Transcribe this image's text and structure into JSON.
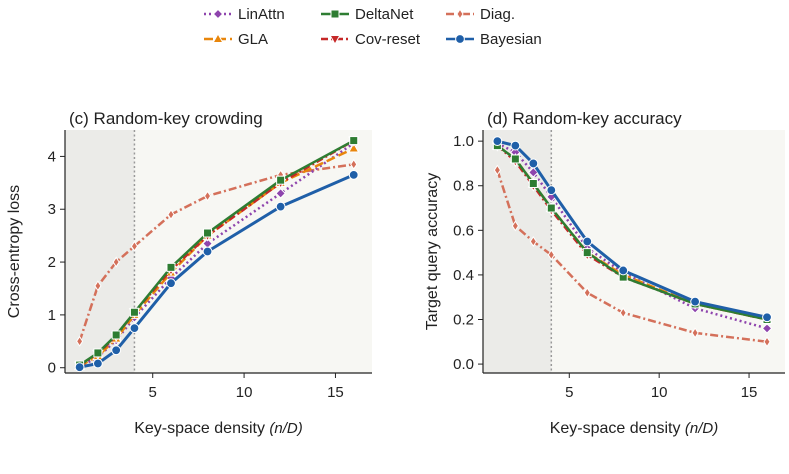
{
  "legend": [
    {
      "name": "LinAttn",
      "color": "#8e44ad",
      "marker": "diamond",
      "dash": "2,3"
    },
    {
      "name": "GLA",
      "color": "#e8860c",
      "marker": "triangle-up",
      "dash": "9,4"
    },
    {
      "name": "DeltaNet",
      "color": "#2e7d32",
      "marker": "square",
      "dash": "none"
    },
    {
      "name": "Cov-reset",
      "color": "#c62828",
      "marker": "triangle-down",
      "dash": "7,3,2,3"
    },
    {
      "name": "Diag.",
      "color": "#d4705a",
      "marker": "thin-diamond",
      "dash": "8,3,2,3"
    },
    {
      "name": "Bayesian",
      "color": "#1f5fa8",
      "marker": "circle",
      "dash": "none"
    }
  ],
  "chart_data": [
    {
      "type": "line",
      "title": "(c) Random-key crowding",
      "xlabel": "Key-space density",
      "xlabel_math": "(n/D)",
      "ylabel": "Cross-entropy loss",
      "xlim": [
        0.2,
        17
      ],
      "ylim": [
        -0.1,
        4.5
      ],
      "xticks": [
        5,
        10,
        15
      ],
      "yticks": [
        0,
        1,
        2,
        3,
        4
      ],
      "shaded_region": [
        0.2,
        4
      ],
      "reference_line_x": 4,
      "x": [
        1,
        2,
        3,
        4,
        6,
        8,
        12,
        16
      ],
      "series": [
        {
          "name": "LinAttn",
          "values": [
            0.02,
            0.2,
            0.52,
            0.95,
            1.7,
            2.35,
            3.3,
            4.25
          ]
        },
        {
          "name": "GLA",
          "values": [
            0.03,
            0.22,
            0.55,
            1.0,
            1.8,
            2.5,
            3.5,
            4.15
          ]
        },
        {
          "name": "DeltaNet",
          "values": [
            0.05,
            0.28,
            0.62,
            1.05,
            1.9,
            2.55,
            3.55,
            4.3
          ]
        },
        {
          "name": "Cov-reset",
          "values": [
            0.04,
            0.26,
            0.6,
            1.05,
            1.85,
            2.5,
            3.5,
            4.3
          ]
        },
        {
          "name": "Diag.",
          "values": [
            0.5,
            1.55,
            2.0,
            2.3,
            2.9,
            3.25,
            3.65,
            3.85
          ]
        },
        {
          "name": "Bayesian",
          "values": [
            0.01,
            0.08,
            0.33,
            0.75,
            1.6,
            2.2,
            3.05,
            3.65
          ]
        }
      ]
    },
    {
      "type": "line",
      "title": "(d) Random-key accuracy",
      "xlabel": "Key-space density",
      "xlabel_math": "(n/D)",
      "ylabel": "Target query accuracy",
      "xlim": [
        0.2,
        17
      ],
      "ylim": [
        -0.04,
        1.05
      ],
      "xticks": [
        5,
        10,
        15
      ],
      "yticks": [
        0.0,
        0.2,
        0.4,
        0.6,
        0.8,
        1.0
      ],
      "shaded_region": [
        0.2,
        4
      ],
      "reference_line_x": 4,
      "x": [
        1,
        2,
        3,
        4,
        6,
        8,
        12,
        16
      ],
      "series": [
        {
          "name": "LinAttn",
          "values": [
            0.99,
            0.95,
            0.86,
            0.75,
            0.52,
            0.41,
            0.25,
            0.16
          ]
        },
        {
          "name": "GLA",
          "values": [
            0.98,
            0.92,
            0.81,
            0.7,
            0.5,
            0.4,
            0.27,
            0.2
          ]
        },
        {
          "name": "DeltaNet",
          "values": [
            0.98,
            0.92,
            0.81,
            0.7,
            0.5,
            0.39,
            0.27,
            0.2
          ]
        },
        {
          "name": "Cov-reset",
          "values": [
            0.98,
            0.91,
            0.8,
            0.69,
            0.49,
            0.39,
            0.27,
            0.2
          ]
        },
        {
          "name": "Diag.",
          "values": [
            0.87,
            0.62,
            0.55,
            0.49,
            0.32,
            0.23,
            0.14,
            0.1
          ]
        },
        {
          "name": "Bayesian",
          "values": [
            1.0,
            0.98,
            0.9,
            0.78,
            0.55,
            0.42,
            0.28,
            0.21
          ]
        }
      ]
    }
  ]
}
